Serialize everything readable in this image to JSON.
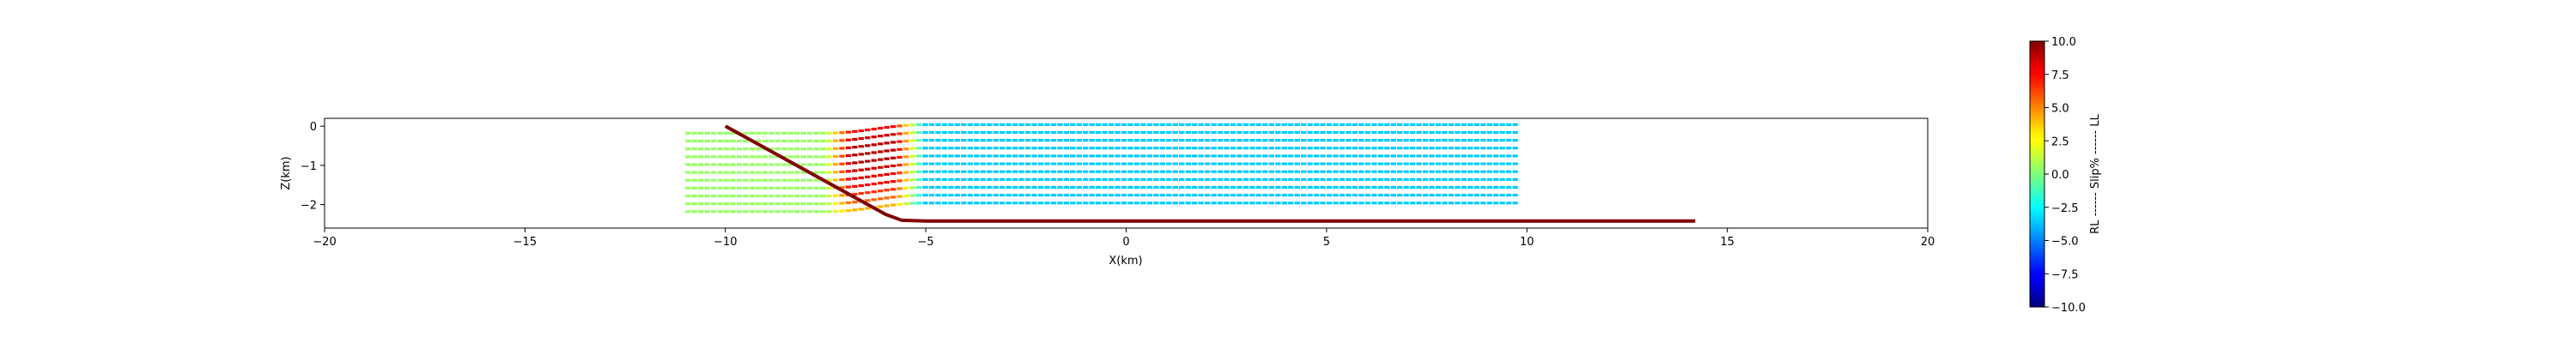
{
  "chart_data": {
    "type": "line",
    "xlabel": "X(km)",
    "ylabel": "Z(km)",
    "xlim": [
      -20,
      20
    ],
    "ylim": [
      -2.6,
      0.2
    ],
    "xticks": [
      "−20",
      "−15",
      "−10",
      "−5",
      "0",
      "5",
      "10",
      "15",
      "20"
    ],
    "xtick_values": [
      -20,
      -15,
      -10,
      -5,
      0,
      5,
      10,
      15,
      20
    ],
    "yticks": [
      "0",
      "−1",
      "−2"
    ],
    "ytick_values": [
      0,
      -1,
      -2
    ],
    "grid": false,
    "fault": {
      "color": "#800000",
      "x": [
        -10.0,
        -6.0,
        -5.6,
        -5.0,
        0.0,
        5.0,
        10.0,
        14.2
      ],
      "z": [
        0.0,
        -2.25,
        -2.4,
        -2.42,
        -2.42,
        -2.42,
        -2.42,
        -2.42
      ]
    },
    "layers": {
      "z": [
        -0.18,
        -0.38,
        -0.58,
        -0.78,
        -0.98,
        -1.18,
        -1.38,
        -1.58,
        -1.78,
        -1.98,
        -2.18
      ],
      "x_start": -11.0,
      "x_end": 9.7,
      "fold_x": [
        -7.5,
        -5.0
      ],
      "max_uplift_km": 0.22,
      "slip_color_peak": [
        7.5,
        8.5,
        9.0,
        9.0,
        9.0,
        8.5,
        8.0,
        7.5,
        6.5,
        5.5,
        4.0
      ],
      "slip_color_tail": -3.5,
      "slip_color_base": 0.5
    },
    "colorbar": {
      "label": "RL ------ Slip% ------ LL",
      "range": [
        -10.0,
        10.0
      ],
      "ticks": [
        "10.0",
        "7.5",
        "5.0",
        "2.5",
        "0.0",
        "−2.5",
        "−5.0",
        "−7.5",
        "−10.0"
      ],
      "tick_values": [
        10.0,
        7.5,
        5.0,
        2.5,
        0.0,
        -2.5,
        -5.0,
        -7.5,
        -10.0
      ],
      "colormap": "jet"
    }
  }
}
